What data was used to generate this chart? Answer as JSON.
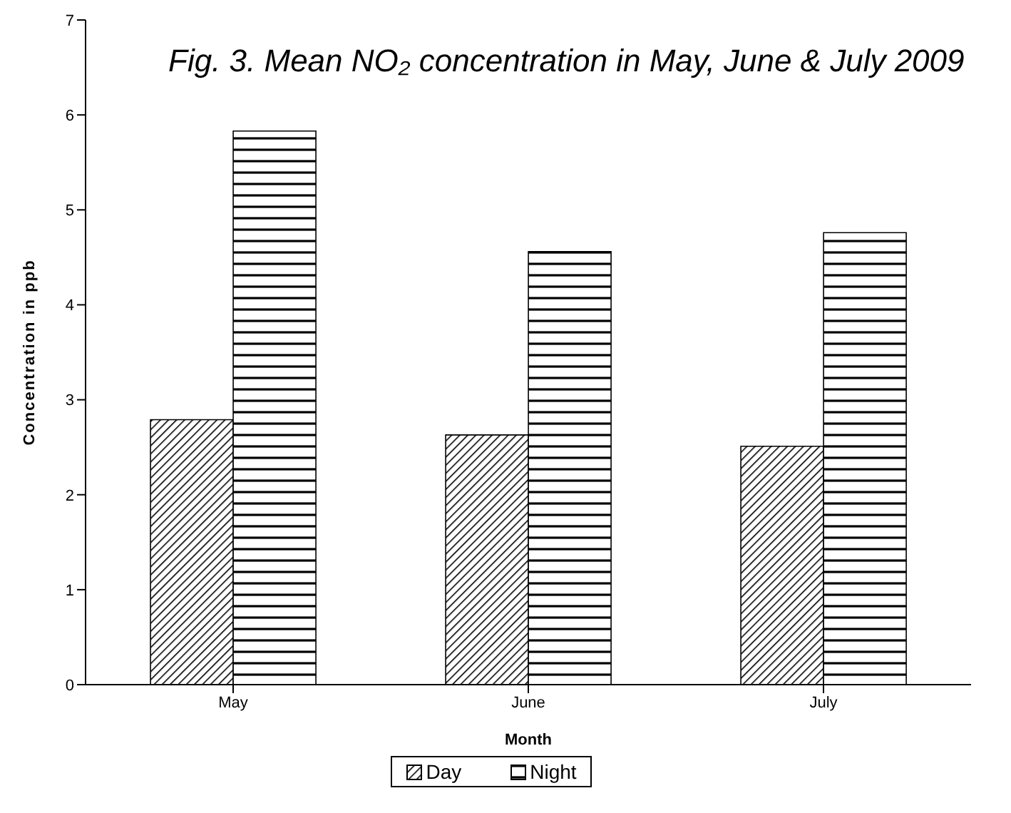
{
  "chart_data": {
    "type": "bar",
    "title": "Fig. 3. Mean NO₂ concentration in May, June & July 2009",
    "xlabel": "Month",
    "ylabel": "Concentration in ppb",
    "categories": [
      "May",
      "June",
      "July"
    ],
    "series": [
      {
        "name": "Day",
        "color": "#000000",
        "values": [
          2.79,
          2.63,
          2.51
        ]
      },
      {
        "name": "Night",
        "color": "#000000",
        "values": [
          5.83,
          4.56,
          4.76
        ]
      }
    ],
    "ylim": [
      0,
      7
    ],
    "yticks": [
      0,
      1,
      2,
      3,
      4,
      5,
      6,
      7
    ],
    "grid": false,
    "legend": "bottom"
  }
}
